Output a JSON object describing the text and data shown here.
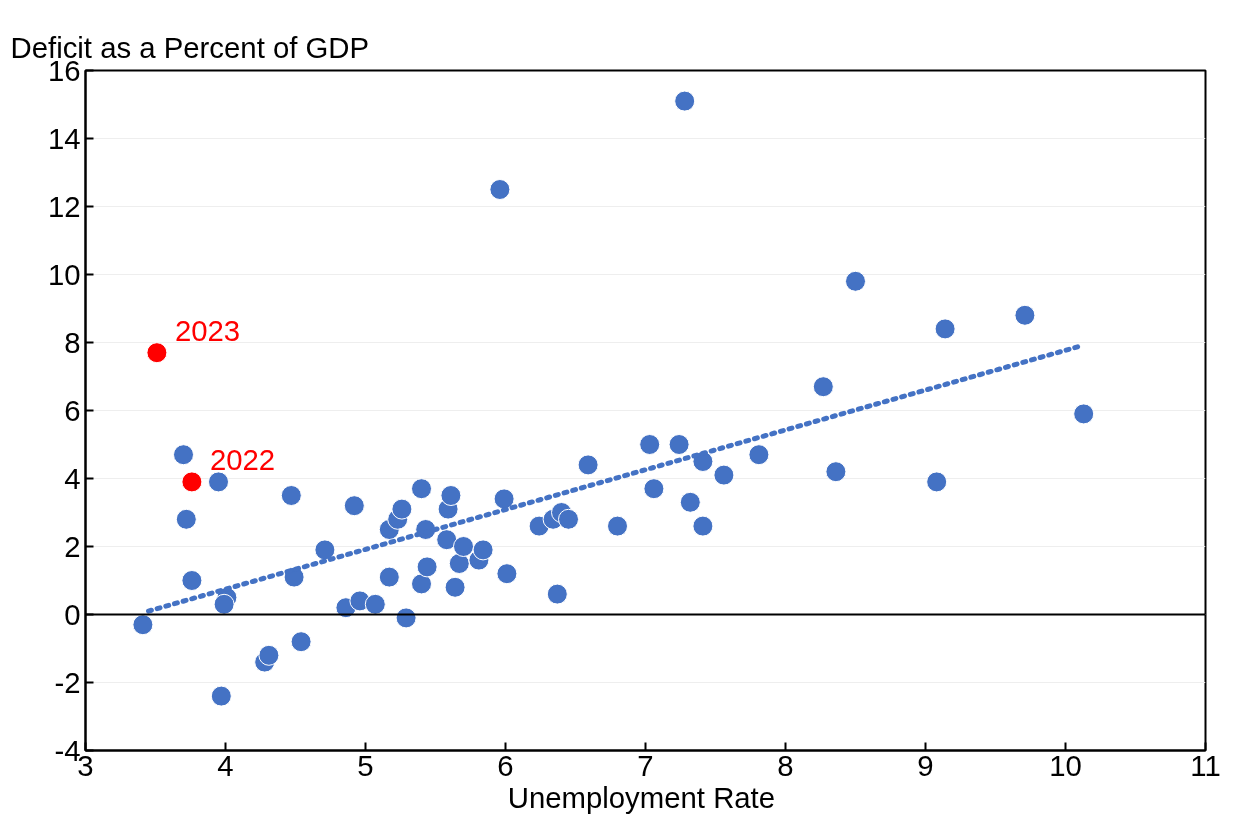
{
  "chart_data": {
    "type": "scatter",
    "ylabel": "Deficit as a Percent of GDP",
    "xlabel": "Unemployment  Rate",
    "xlim": [
      3,
      11
    ],
    "xticks": [
      3,
      4,
      5,
      6,
      7,
      8,
      9,
      10,
      11
    ],
    "ylim": [
      -4,
      16
    ],
    "yticks": [
      -4,
      -2,
      0,
      2,
      4,
      6,
      8,
      10,
      12,
      14,
      16
    ],
    "grid": "y",
    "marker": "circle",
    "series": [
      {
        "color": "#4472c4",
        "x": [
          3.41,
          3.7,
          3.72,
          3.76,
          3.95,
          3.97,
          4.01,
          3.99,
          4.28,
          4.31,
          4.54,
          4.47,
          4.49,
          4.71,
          4.86,
          4.92,
          4.96,
          5.07,
          5.17,
          5.17,
          5.23,
          5.26,
          5.29,
          5.4,
          5.4,
          5.43,
          5.44,
          5.59,
          5.61,
          5.58,
          5.64,
          5.67,
          5.7,
          5.81,
          5.84,
          5.96,
          5.99,
          6.01,
          6.24,
          6.34,
          6.4,
          6.45,
          6.37,
          6.59,
          6.8,
          7.03,
          7.06,
          7.24,
          7.28,
          7.32,
          7.41,
          7.41,
          7.56,
          7.81,
          8.27,
          8.36,
          8.5,
          9.08,
          9.14,
          9.71,
          10.13
        ],
        "values": [
          -0.3,
          4.7,
          2.8,
          1.0,
          3.9,
          -2.4,
          0.5,
          0.3,
          -1.4,
          -1.2,
          -0.8,
          3.5,
          1.1,
          1.9,
          0.2,
          3.2,
          0.4,
          0.3,
          1.1,
          2.5,
          2.8,
          3.1,
          -0.1,
          3.7,
          0.9,
          2.5,
          1.4,
          3.1,
          3.5,
          2.2,
          0.8,
          1.5,
          2.0,
          1.6,
          1.9,
          12.5,
          3.4,
          1.2,
          2.6,
          2.8,
          3.0,
          2.8,
          0.6,
          4.4,
          2.6,
          5.0,
          3.7,
          5.0,
          15.1,
          3.3,
          4.5,
          2.6,
          4.1,
          4.7,
          6.7,
          4.2,
          9.8,
          3.9,
          8.4,
          8.8,
          5.9
        ]
      },
      {
        "color": "#ff0000",
        "x": [
          3.51,
          3.76
        ],
        "values": [
          7.7,
          3.9
        ]
      },
      {
        "type": "line",
        "color": "#4472c4",
        "line_style": "dotted",
        "marker": "none",
        "x": [
          3.45,
          10.11
        ],
        "values": [
          0.1,
          7.9
        ]
      }
    ],
    "ref_lines": [
      {
        "axis": "y",
        "value": 0,
        "color": "#000000"
      }
    ],
    "annotations": [
      {
        "text": "2023",
        "x": 3.51,
        "y": 7.7
      },
      {
        "text": "2022",
        "x": 3.76,
        "y": 3.9
      }
    ]
  }
}
